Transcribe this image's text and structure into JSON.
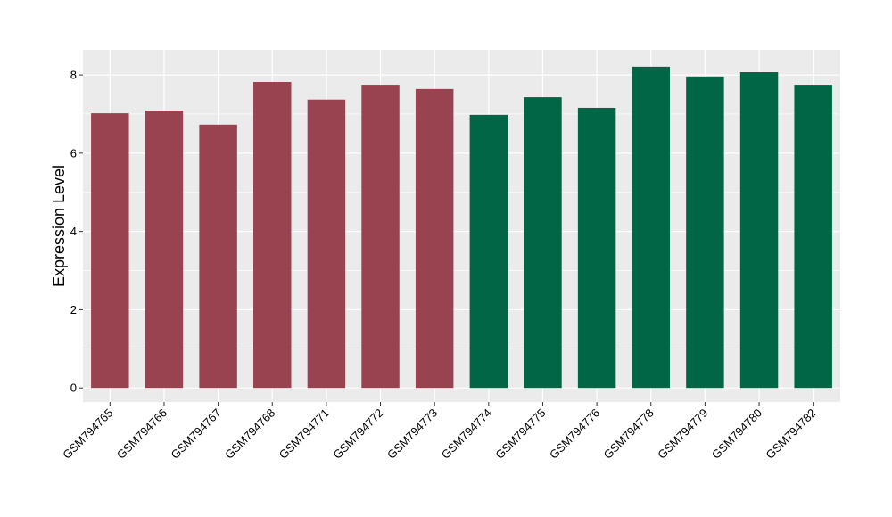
{
  "chart_data": {
    "type": "bar",
    "title": "",
    "xlabel": "",
    "ylabel": "Expression Level",
    "ylim": [
      -0.36,
      8.64
    ],
    "yticks": [
      0,
      2,
      4,
      6,
      8
    ],
    "grid": true,
    "legend": "none",
    "categories": [
      "GSM794765",
      "GSM794766",
      "GSM794767",
      "GSM794768",
      "GSM794771",
      "GSM794772",
      "GSM794773",
      "GSM794774",
      "GSM794775",
      "GSM794776",
      "GSM794778",
      "GSM794779",
      "GSM794780",
      "GSM794782"
    ],
    "values": [
      7.02,
      7.09,
      6.73,
      7.82,
      7.37,
      7.75,
      7.64,
      6.98,
      7.43,
      7.16,
      8.21,
      7.96,
      8.07,
      7.75
    ],
    "groups": [
      0,
      0,
      0,
      0,
      0,
      0,
      0,
      1,
      1,
      1,
      1,
      1,
      1,
      1
    ],
    "colors": {
      "group_0": "#9A4350",
      "group_1": "#006645",
      "panel_background": "#EBEBEB",
      "grid_line": "#FFFFFF"
    }
  }
}
